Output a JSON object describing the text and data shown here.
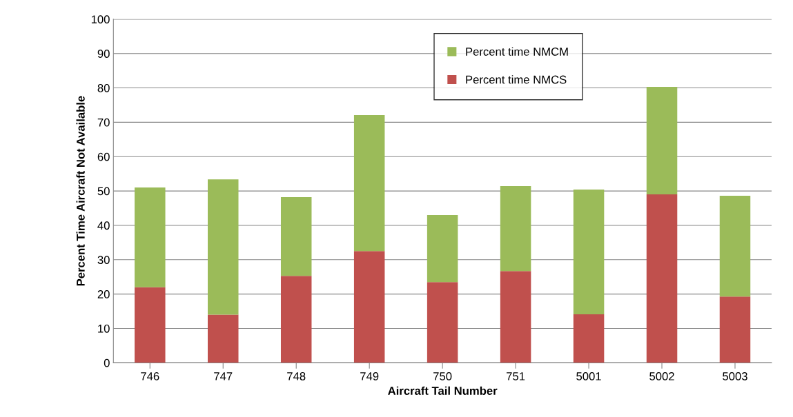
{
  "chart_data": {
    "type": "bar",
    "stacked": true,
    "xlabel": "Aircraft Tail Number",
    "ylabel": "Percent Time Aircraft Not Available",
    "categories": [
      "746",
      "747",
      "748",
      "749",
      "750",
      "751",
      "5001",
      "5002",
      "5003"
    ],
    "series": [
      {
        "name": "Percent time NMCS",
        "color": "#c0504d",
        "values": [
          22,
          14,
          25.3,
          32.5,
          23.5,
          26.7,
          14.1,
          49,
          19.3
        ]
      },
      {
        "name": "Percent time NMCM",
        "color": "#9bbb59",
        "values": [
          29,
          39.4,
          22.9,
          39.6,
          19.5,
          24.7,
          36.3,
          31.3,
          29.3
        ]
      }
    ],
    "ylim": [
      0,
      100
    ],
    "yticks": [
      0,
      10,
      20,
      30,
      40,
      50,
      60,
      70,
      80,
      90,
      100
    ],
    "grid": "y",
    "legend": "top"
  }
}
